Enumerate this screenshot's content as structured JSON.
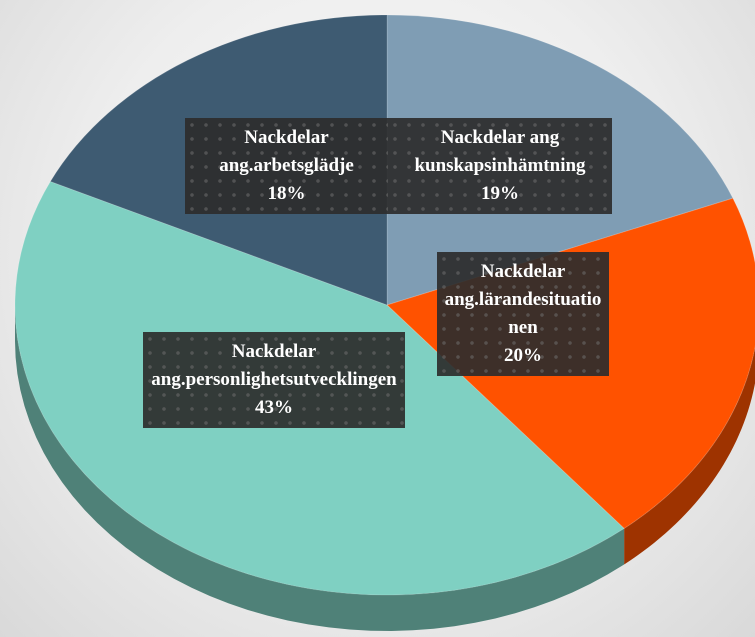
{
  "chart_data": {
    "type": "pie",
    "categories": [
      "Nackdelar ang kunskapsinhämtning",
      "Nackdelar ang.lärandesituationen",
      "Nackdelar ang.personlighetsutvecklingen",
      "Nackdelar ang.arbetsglädje"
    ],
    "values": [
      19,
      20,
      43,
      18
    ],
    "value_labels": [
      "19%",
      "20%",
      "43%",
      "18%"
    ],
    "colors": [
      "#7f9db4",
      "#ff5200",
      "#7fd0c2",
      "#3e5b72"
    ]
  }
}
